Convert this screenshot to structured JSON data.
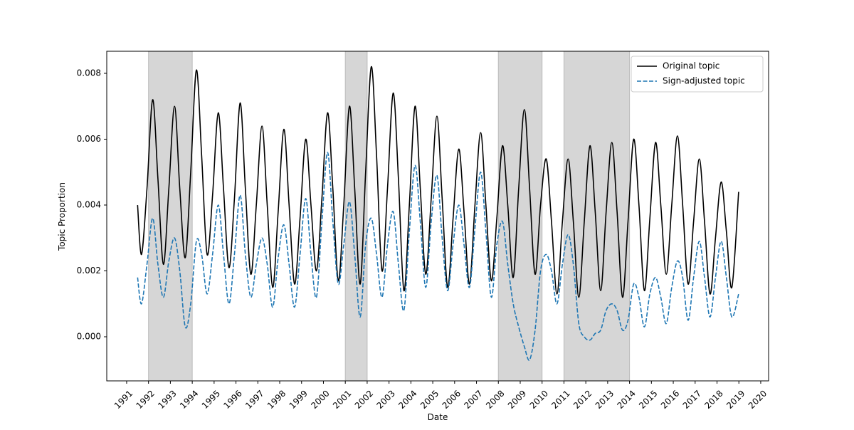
{
  "chart_data": {
    "type": "line",
    "xlabel": "Date",
    "ylabel": "Topic Proportion",
    "xlim": [
      1990.09,
      2020.36
    ],
    "xticks": [
      1991,
      1992,
      1993,
      1994,
      1995,
      1996,
      1997,
      1998,
      1999,
      2000,
      2001,
      2002,
      2003,
      2004,
      2005,
      2006,
      2007,
      2008,
      2009,
      2010,
      2011,
      2012,
      2013,
      2014,
      2015,
      2016,
      2017,
      2018,
      2019,
      2020
    ],
    "ylim": [
      -0.00134,
      0.00867
    ],
    "yticks": [
      {
        "value": 0,
        "label": "0.000"
      },
      {
        "value": 0.002,
        "label": "0.002"
      },
      {
        "value": 0.004,
        "label": "0.004"
      },
      {
        "value": 0.006,
        "label": "0.006"
      },
      {
        "value": 0.008,
        "label": "0.008"
      }
    ],
    "shaded_periods": [
      [
        1992,
        1994
      ],
      [
        2001,
        2002
      ],
      [
        2008,
        2010
      ],
      [
        2011,
        2014
      ]
    ],
    "shade_color": "#d6d6d6",
    "legend": "upper right",
    "x": [
      1991.5,
      1991.68,
      1991.93,
      1992.19,
      1992.43,
      1992.68,
      1992.93,
      1993.19,
      1993.43,
      1993.68,
      1993.93,
      1994.19,
      1994.43,
      1994.68,
      1994.93,
      1995.19,
      1995.43,
      1995.68,
      1995.93,
      1996.19,
      1996.43,
      1996.68,
      1996.93,
      1997.19,
      1997.43,
      1997.68,
      1997.93,
      1998.19,
      1998.43,
      1998.68,
      1998.93,
      1999.19,
      1999.43,
      1999.68,
      1999.93,
      2000.19,
      2000.43,
      2000.68,
      2000.93,
      2001.19,
      2001.43,
      2001.68,
      2001.93,
      2002.19,
      2002.43,
      2002.68,
      2002.93,
      2003.19,
      2003.43,
      2003.68,
      2003.93,
      2004.19,
      2004.43,
      2004.68,
      2004.93,
      2005.19,
      2005.43,
      2005.68,
      2005.93,
      2006.19,
      2006.43,
      2006.68,
      2006.93,
      2007.19,
      2007.43,
      2007.68,
      2007.93,
      2008.19,
      2008.43,
      2008.68,
      2008.93,
      2009.19,
      2009.43,
      2009.68,
      2009.93,
      2010.19,
      2010.43,
      2010.68,
      2010.93,
      2011.19,
      2011.43,
      2011.68,
      2011.93,
      2012.19,
      2012.43,
      2012.68,
      2012.93,
      2013.19,
      2013.43,
      2013.68,
      2013.93,
      2014.19,
      2014.43,
      2014.68,
      2014.93,
      2015.19,
      2015.43,
      2015.68,
      2015.93,
      2016.19,
      2016.43,
      2016.68,
      2016.93,
      2017.19,
      2017.43,
      2017.68,
      2017.93,
      2018.19,
      2018.43,
      2018.68,
      2018.99
    ],
    "series": [
      {
        "name": "Original topic",
        "color": "#000000",
        "style": "solid",
        "values": [
          0.004,
          0.0025,
          0.0045,
          0.0072,
          0.0048,
          0.0022,
          0.0045,
          0.007,
          0.0045,
          0.0024,
          0.005,
          0.0081,
          0.0055,
          0.0025,
          0.0043,
          0.0068,
          0.0045,
          0.0021,
          0.0042,
          0.0071,
          0.0045,
          0.0019,
          0.004,
          0.0064,
          0.004,
          0.0015,
          0.0038,
          0.0063,
          0.004,
          0.0016,
          0.0036,
          0.006,
          0.004,
          0.002,
          0.0042,
          0.0068,
          0.0045,
          0.0017,
          0.004,
          0.007,
          0.0045,
          0.0016,
          0.005,
          0.0082,
          0.0055,
          0.002,
          0.0045,
          0.0074,
          0.0048,
          0.0014,
          0.004,
          0.007,
          0.0045,
          0.0019,
          0.0042,
          0.0067,
          0.0042,
          0.0015,
          0.0036,
          0.0057,
          0.0038,
          0.0016,
          0.004,
          0.0062,
          0.004,
          0.0017,
          0.0036,
          0.0058,
          0.004,
          0.0018,
          0.0045,
          0.0069,
          0.0045,
          0.0019,
          0.004,
          0.0054,
          0.0035,
          0.0013,
          0.0035,
          0.0054,
          0.0035,
          0.0012,
          0.0035,
          0.0058,
          0.0038,
          0.0014,
          0.0038,
          0.0059,
          0.0038,
          0.0012,
          0.0035,
          0.006,
          0.004,
          0.0014,
          0.0036,
          0.0059,
          0.004,
          0.0019,
          0.004,
          0.0061,
          0.004,
          0.0016,
          0.0035,
          0.0054,
          0.0035,
          0.0013,
          0.003,
          0.0047,
          0.0032,
          0.0015,
          0.0044
        ]
      },
      {
        "name": "Sign-adjusted topic",
        "color": "#1f77b4",
        "style": "dashed",
        "values": [
          0.0018,
          0.001,
          0.0022,
          0.0036,
          0.0022,
          0.0012,
          0.0023,
          0.003,
          0.002,
          0.0003,
          0.001,
          0.0029,
          0.0025,
          0.0013,
          0.0025,
          0.004,
          0.0025,
          0.001,
          0.0025,
          0.0043,
          0.0025,
          0.0012,
          0.0022,
          0.003,
          0.0022,
          0.0009,
          0.0024,
          0.0034,
          0.0022,
          0.0009,
          0.0025,
          0.0042,
          0.0025,
          0.0012,
          0.0035,
          0.0056,
          0.0035,
          0.0016,
          0.0028,
          0.0041,
          0.0025,
          0.0006,
          0.0028,
          0.0036,
          0.0025,
          0.0012,
          0.0028,
          0.0038,
          0.0022,
          0.0008,
          0.0032,
          0.0052,
          0.0035,
          0.0015,
          0.0035,
          0.0049,
          0.003,
          0.0014,
          0.0028,
          0.004,
          0.0028,
          0.0015,
          0.0033,
          0.005,
          0.0032,
          0.0012,
          0.0028,
          0.0035,
          0.0022,
          0.001,
          0.0003,
          -0.0003,
          -0.0007,
          0.0002,
          0.002,
          0.0025,
          0.002,
          0.001,
          0.0022,
          0.0031,
          0.0022,
          0.0004,
          0.0,
          -0.0001,
          0.0001,
          0.0002,
          0.0008,
          0.001,
          0.0008,
          0.0002,
          0.0005,
          0.0016,
          0.0012,
          0.0003,
          0.0013,
          0.0018,
          0.0012,
          0.0004,
          0.0015,
          0.0023,
          0.0018,
          0.0005,
          0.0018,
          0.0029,
          0.0018,
          0.0006,
          0.0018,
          0.0029,
          0.0018,
          0.0006,
          0.0013
        ]
      }
    ]
  }
}
